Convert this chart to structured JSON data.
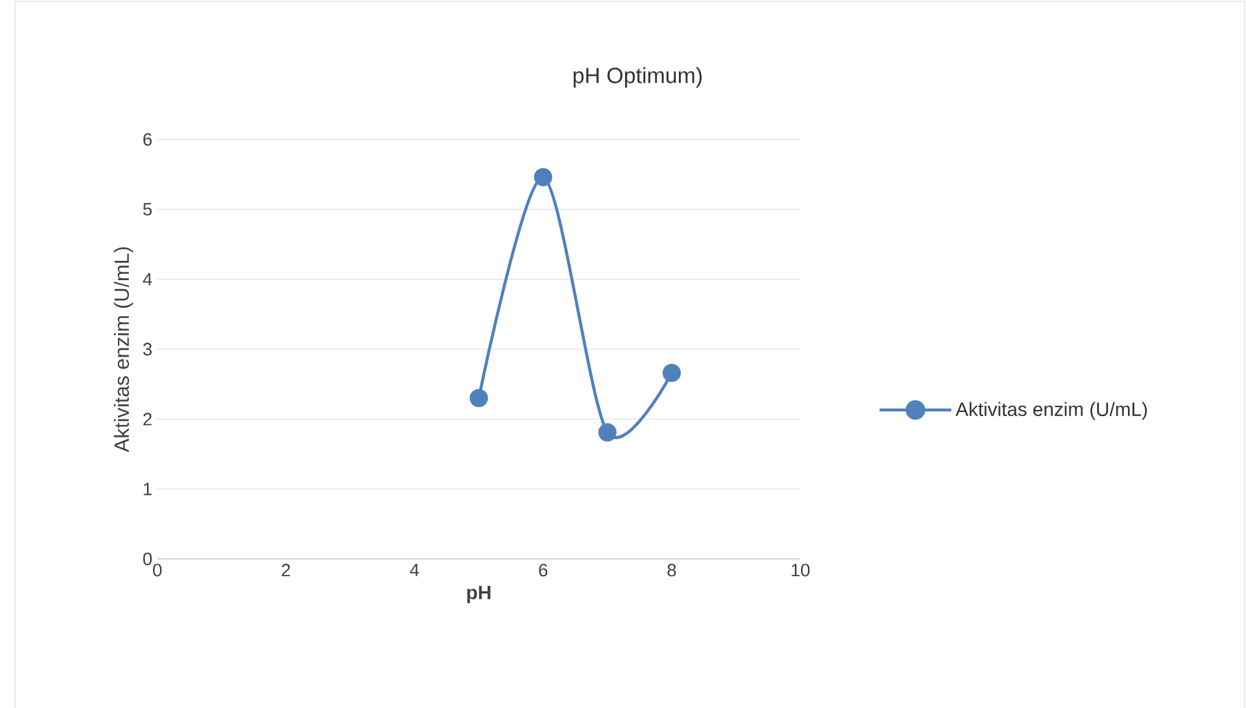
{
  "chart_data": {
    "type": "line",
    "title": "pH Optimum)",
    "xlabel": "pH",
    "ylabel": "Aktivitas enzim (U/mL)",
    "x": [
      5,
      6,
      7,
      8
    ],
    "series": [
      {
        "name": "Aktivitas enzim (U/mL)",
        "color": "#4f81bd",
        "values": [
          2.3,
          5.46,
          1.81,
          2.66
        ]
      }
    ],
    "xlim": [
      0,
      10
    ],
    "ylim": [
      0,
      6
    ],
    "xticks": [
      0,
      2,
      4,
      6,
      8,
      10
    ],
    "yticks": [
      0,
      1,
      2,
      3,
      4,
      5,
      6
    ],
    "grid": "y",
    "legend": "right",
    "marker": "circle",
    "line_style": "solid"
  }
}
